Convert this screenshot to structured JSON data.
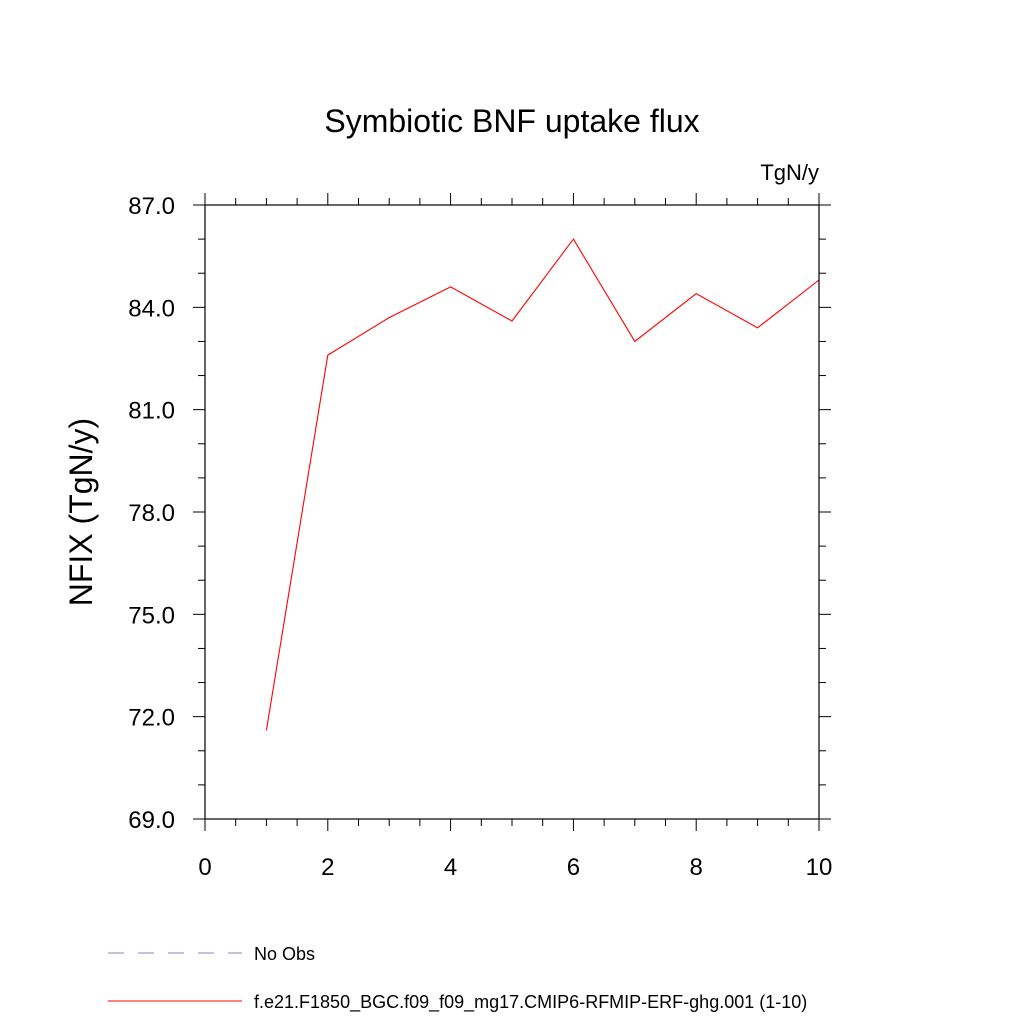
{
  "chart_data": {
    "type": "line",
    "title": "Symbiotic BNF uptake flux",
    "units_label": "TgN/y",
    "ylabel": "NFIX  (TgN/y)",
    "xlabel": "",
    "xlim": [
      0,
      10
    ],
    "ylim": [
      69.0,
      87.0
    ],
    "x_ticks": [
      0,
      2,
      4,
      6,
      8,
      10
    ],
    "x_tick_labels": [
      "0",
      "2",
      "4",
      "6",
      "8",
      "10"
    ],
    "y_ticks": [
      69.0,
      72.0,
      75.0,
      78.0,
      81.0,
      84.0,
      87.0
    ],
    "y_tick_labels": [
      "69.0",
      "72.0",
      "75.0",
      "78.0",
      "81.0",
      "84.0",
      "87.0"
    ],
    "grid": false,
    "legend_placement": "bottom",
    "series": [
      {
        "name": "f.e21.F1850_BGC.f09_f09_mg17.CMIP6-RFMIP-ERF-ghg.001 (1-10)",
        "color": "#ff0000",
        "style": "solid",
        "x": [
          1,
          2,
          3,
          4,
          5,
          6,
          7,
          8,
          9,
          10
        ],
        "y": [
          71.6,
          82.6,
          83.7,
          84.6,
          83.6,
          86.0,
          83.0,
          84.4,
          83.4,
          84.8
        ]
      }
    ],
    "legend": [
      {
        "label": "No Obs",
        "color": "#8a80c0",
        "style": "dashed"
      },
      {
        "label": "f.e21.F1850_BGC.f09_f09_mg17.CMIP6-RFMIP-ERF-ghg.001 (1-10)",
        "color": "#ff0000",
        "style": "solid"
      }
    ]
  }
}
